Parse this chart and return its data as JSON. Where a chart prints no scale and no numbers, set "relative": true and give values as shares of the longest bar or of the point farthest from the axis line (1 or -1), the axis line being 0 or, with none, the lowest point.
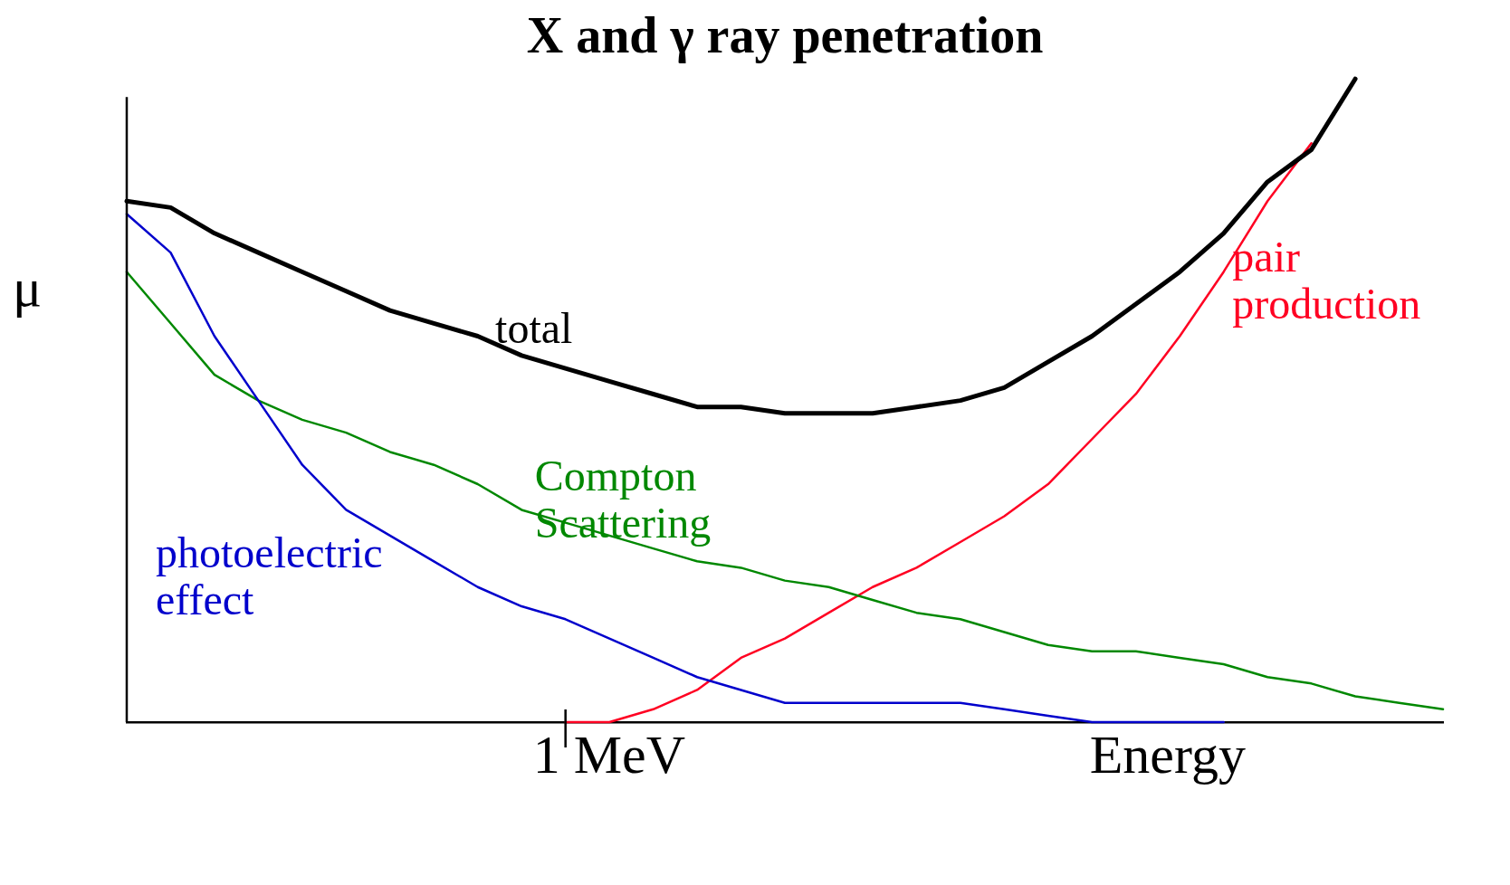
{
  "chart_data": {
    "type": "line",
    "title": "X and γ ray penetration",
    "xlabel": "Energy",
    "ylabel": "μ",
    "relative": true,
    "legend": false,
    "grid": false,
    "marker": "none",
    "line_style": "solid",
    "annotations": [
      "1 MeV"
    ],
    "categories": [
      null,
      null,
      null,
      null,
      null,
      null,
      null,
      null,
      null,
      null,
      null,
      null,
      null,
      null,
      null,
      null,
      null,
      null,
      null,
      null,
      null,
      null,
      null,
      null,
      null,
      null,
      null,
      null,
      null,
      null,
      null
    ],
    "series": [
      {
        "name": "total",
        "color": "#000000",
        "values": [
          0.81,
          0.8,
          0.76,
          0.73,
          0.7,
          0.67,
          0.64,
          0.62,
          0.6,
          0.57,
          0.55,
          0.53,
          0.51,
          0.49,
          0.49,
          0.48,
          0.48,
          0.48,
          0.49,
          0.5,
          0.52,
          0.56,
          0.6,
          0.65,
          0.7,
          0.76,
          0.84,
          0.89,
          1,
          null,
          null
        ]
      },
      {
        "name": "photoelectric effect",
        "color": "#0000cc",
        "values": [
          0.79,
          0.73,
          0.6,
          0.5,
          0.4,
          0.33,
          0.29,
          0.25,
          0.21,
          0.18,
          0.16,
          0.13,
          0.1,
          0.07,
          0.05,
          0.03,
          0.03,
          0.03,
          0.03,
          0.03,
          0.02,
          0.01,
          0,
          0,
          0,
          0,
          null,
          null,
          null,
          null,
          null
        ]
      },
      {
        "name": "Compton Scattering",
        "color": "#008800",
        "values": [
          0.7,
          0.62,
          0.54,
          0.5,
          0.47,
          0.45,
          0.42,
          0.4,
          0.37,
          0.33,
          0.31,
          0.29,
          0.27,
          0.25,
          0.24,
          0.22,
          0.21,
          0.19,
          0.17,
          0.16,
          0.14,
          0.12,
          0.11,
          0.11,
          0.1,
          0.09,
          0.07,
          0.06,
          0.04,
          0.03,
          0.02
        ]
      },
      {
        "name": "pair production",
        "color": "#ff0022",
        "values": [
          null,
          null,
          null,
          null,
          null,
          null,
          null,
          null,
          null,
          null,
          0,
          0,
          0.02,
          0.05,
          0.1,
          0.13,
          0.17,
          0.21,
          0.24,
          0.28,
          0.32,
          0.37,
          0.44,
          0.51,
          0.6,
          0.7,
          0.81,
          0.9,
          null,
          null,
          null
        ]
      }
    ]
  }
}
